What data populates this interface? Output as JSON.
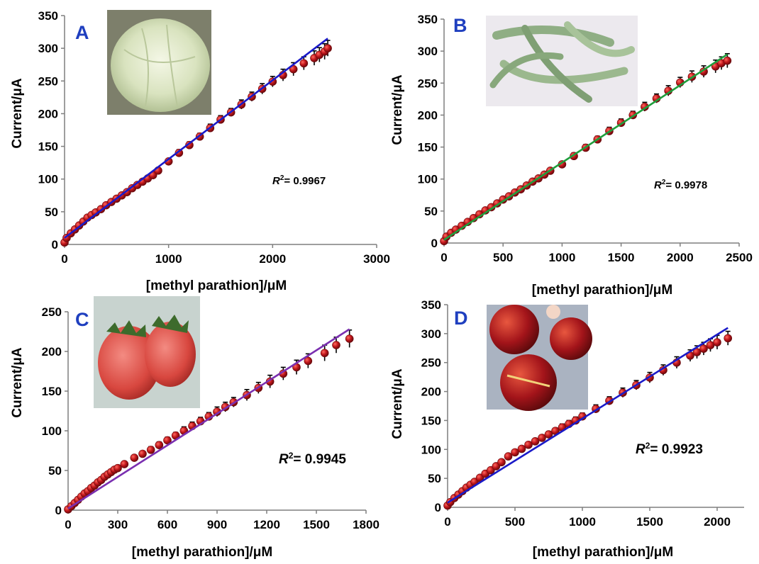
{
  "colors": {
    "points": "#c0161b",
    "points_dark": "#6e0a0d",
    "error_bars": "#000000",
    "letters": "#1f3fbf"
  },
  "chart_data": [
    {
      "type": "scatter",
      "panel": "A",
      "ylabel": "Current/μA",
      "xlabel": "[methyl parathion]/μM",
      "xlim": [
        0,
        3000
      ],
      "ylim": [
        0,
        350
      ],
      "xticks": [
        0,
        1000,
        2000,
        3000
      ],
      "yticks": [
        0,
        50,
        100,
        150,
        200,
        250,
        300,
        350
      ],
      "r2": "= 0.9967",
      "fit_color": "#1a1ac8",
      "fit_line": [
        [
          0,
          10
        ],
        [
          2530,
          315
        ]
      ],
      "inset_icon": "cabbage-photo",
      "series": [
        {
          "x": [
            0,
            20,
            60,
            100,
            140,
            180,
            220,
            260,
            300,
            350,
            400,
            450,
            500,
            550,
            600,
            650,
            700,
            750,
            800,
            850,
            900,
            1000,
            1100,
            1200,
            1300,
            1400,
            1500,
            1600,
            1700,
            1800,
            1900,
            2000,
            2100,
            2200,
            2300,
            2400,
            2450,
            2500,
            2530
          ],
          "y": [
            3,
            10,
            17,
            23,
            29,
            35,
            41,
            45,
            49,
            54,
            60,
            65,
            70,
            75,
            80,
            86,
            91,
            96,
            101,
            106,
            113,
            127,
            140,
            152,
            165,
            178,
            191,
            202,
            214,
            226,
            238,
            249,
            259,
            268,
            277,
            285,
            290,
            295,
            300
          ],
          "err": [
            2,
            2,
            2,
            2,
            2,
            2,
            2,
            2,
            2,
            2,
            2,
            2,
            2,
            2,
            3,
            3,
            3,
            3,
            3,
            4,
            4,
            4,
            5,
            5,
            5,
            6,
            6,
            6,
            7,
            7,
            8,
            8,
            9,
            10,
            10,
            11,
            11,
            12,
            12
          ]
        }
      ]
    },
    {
      "type": "scatter",
      "panel": "B",
      "ylabel": "Current/μA",
      "xlabel": "[methyl parathion]/μM",
      "xlim": [
        0,
        2500
      ],
      "ylim": [
        0,
        350
      ],
      "xticks": [
        0,
        500,
        1000,
        1500,
        2000,
        2500
      ],
      "yticks": [
        0,
        50,
        100,
        150,
        200,
        250,
        300,
        350
      ],
      "r2": "= 0.9978",
      "fit_color": "#1f9e3c",
      "fit_line": [
        [
          0,
          5
        ],
        [
          2400,
          295
        ]
      ],
      "inset_icon": "green-beans-photo",
      "series": [
        {
          "x": [
            0,
            20,
            60,
            100,
            150,
            200,
            250,
            300,
            350,
            400,
            450,
            500,
            550,
            600,
            650,
            700,
            750,
            800,
            850,
            900,
            1000,
            1100,
            1200,
            1300,
            1400,
            1500,
            1600,
            1700,
            1800,
            1900,
            2000,
            2100,
            2200,
            2300,
            2350,
            2400
          ],
          "y": [
            3,
            10,
            16,
            21,
            27,
            33,
            39,
            45,
            51,
            56,
            62,
            68,
            73,
            79,
            84,
            90,
            96,
            101,
            107,
            113,
            123,
            136,
            149,
            162,
            175,
            188,
            200,
            213,
            226,
            238,
            251,
            260,
            268,
            276,
            281,
            285
          ],
          "err": [
            2,
            2,
            2,
            2,
            2,
            2,
            2,
            2,
            2,
            2,
            3,
            3,
            3,
            3,
            3,
            3,
            3,
            4,
            4,
            4,
            4,
            5,
            5,
            5,
            6,
            6,
            6,
            7,
            7,
            8,
            8,
            9,
            9,
            10,
            10,
            11
          ]
        }
      ]
    },
    {
      "type": "scatter",
      "panel": "C",
      "ylabel": "Current/μA",
      "xlabel": "[methyl parathion]/μM",
      "xlim": [
        0,
        1800
      ],
      "ylim": [
        0,
        250
      ],
      "xticks": [
        0,
        300,
        600,
        900,
        1200,
        1500,
        1800
      ],
      "yticks": [
        0,
        50,
        100,
        150,
        200,
        250
      ],
      "r2": "= 0.9945",
      "fit_color": "#7a2fb0",
      "fit_line": [
        [
          0,
          2
        ],
        [
          1700,
          228
        ]
      ],
      "inset_icon": "strawberries-photo",
      "series": [
        {
          "x": [
            0,
            20,
            40,
            60,
            80,
            100,
            120,
            140,
            160,
            180,
            200,
            220,
            240,
            260,
            280,
            300,
            340,
            400,
            450,
            500,
            550,
            600,
            650,
            700,
            750,
            800,
            850,
            900,
            950,
            1000,
            1080,
            1150,
            1220,
            1300,
            1380,
            1450,
            1550,
            1620,
            1700
          ],
          "y": [
            1,
            5,
            9,
            13,
            17,
            21,
            24,
            28,
            31,
            35,
            38,
            42,
            45,
            48,
            51,
            53,
            58,
            66,
            71,
            76,
            82,
            88,
            94,
            100,
            106,
            112,
            118,
            124,
            130,
            136,
            145,
            154,
            162,
            172,
            180,
            188,
            198,
            208,
            216
          ],
          "err": [
            1,
            1,
            1,
            1,
            1,
            1,
            2,
            2,
            2,
            2,
            2,
            2,
            2,
            2,
            3,
            3,
            3,
            3,
            3,
            4,
            4,
            4,
            4,
            5,
            5,
            5,
            5,
            6,
            6,
            6,
            7,
            7,
            8,
            8,
            9,
            9,
            10,
            10,
            11
          ]
        }
      ]
    },
    {
      "type": "scatter",
      "panel": "D",
      "ylabel": "Current/μA",
      "xlabel": "[methyl parathion]/μM",
      "xlim": [
        0,
        2200
      ],
      "ylim": [
        0,
        350
      ],
      "xticks": [
        0,
        500,
        1000,
        1500,
        2000
      ],
      "yticks": [
        0,
        50,
        100,
        150,
        200,
        250,
        300,
        350
      ],
      "r2": "= 0.9923",
      "fit_color": "#1a1ac8",
      "fit_line": [
        [
          0,
          8
        ],
        [
          2080,
          310
        ]
      ],
      "inset_icon": "nectarines-photo",
      "series": [
        {
          "x": [
            0,
            20,
            50,
            80,
            110,
            140,
            170,
            200,
            240,
            280,
            320,
            360,
            400,
            450,
            500,
            550,
            600,
            650,
            700,
            750,
            800,
            850,
            900,
            950,
            1000,
            1100,
            1200,
            1300,
            1400,
            1500,
            1600,
            1700,
            1800,
            1850,
            1900,
            1950,
            2000,
            2080
          ],
          "y": [
            3,
            9,
            16,
            22,
            28,
            34,
            39,
            44,
            51,
            58,
            64,
            71,
            78,
            88,
            95,
            101,
            108,
            114,
            120,
            126,
            132,
            138,
            144,
            150,
            157,
            170,
            184,
            198,
            211,
            224,
            237,
            250,
            262,
            268,
            274,
            280,
            285,
            292
          ],
          "err": [
            2,
            2,
            2,
            2,
            2,
            2,
            2,
            2,
            3,
            3,
            3,
            3,
            3,
            4,
            4,
            4,
            4,
            5,
            5,
            5,
            5,
            6,
            6,
            6,
            6,
            7,
            7,
            8,
            8,
            9,
            9,
            10,
            10,
            11,
            11,
            11,
            12,
            12
          ]
        }
      ]
    }
  ]
}
